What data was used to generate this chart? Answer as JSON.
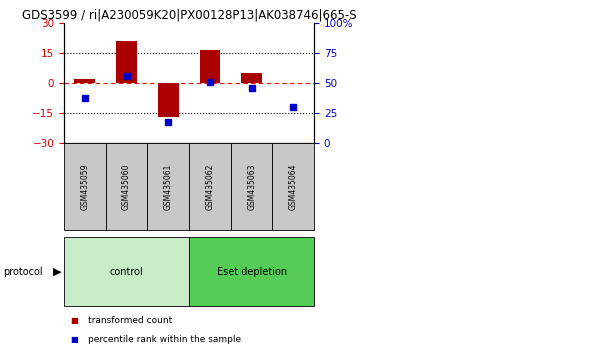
{
  "title": "GDS3599 / ri|A230059K20|PX00128P13|AK038746|665-S",
  "categories": [
    "GSM435059",
    "GSM435060",
    "GSM435061",
    "GSM435062",
    "GSM435063",
    "GSM435064"
  ],
  "red_values": [
    2.0,
    21.0,
    -17.0,
    16.5,
    5.0,
    0.0
  ],
  "blue_values": [
    38,
    56,
    18,
    51,
    46,
    30
  ],
  "ylim_left": [
    -30,
    30
  ],
  "ylim_right": [
    0,
    100
  ],
  "yticks_left": [
    -30,
    -15,
    0,
    15,
    30
  ],
  "yticks_right": [
    0,
    25,
    50,
    75,
    100
  ],
  "ytick_labels_right": [
    "0",
    "25",
    "50",
    "75",
    "100%"
  ],
  "group_colors_left": "#c8ecc8",
  "group_colors_right": "#5fcc5f",
  "red_color": "#AA0000",
  "blue_color": "#0000CC",
  "tick_color_left": "#CC0000",
  "tick_color_right": "#0000CC",
  "legend_red": "transformed count",
  "legend_blue": "percentile rank within the sample",
  "bar_width": 0.5
}
